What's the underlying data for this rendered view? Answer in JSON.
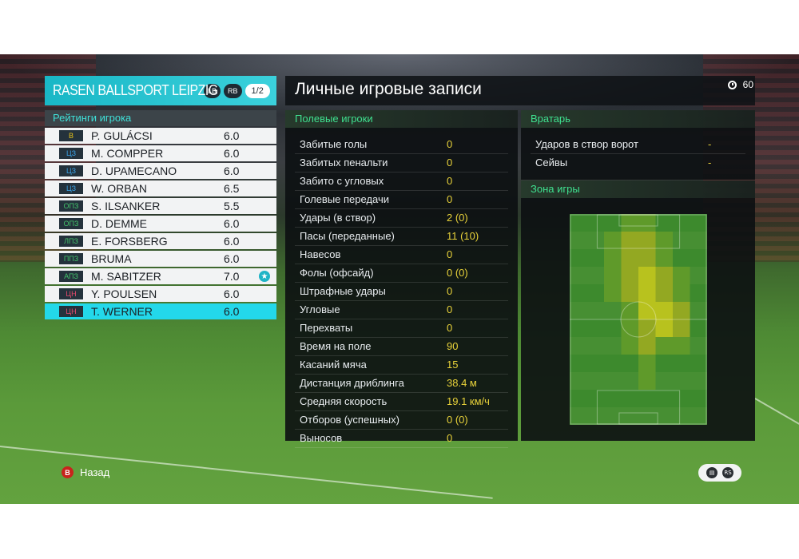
{
  "team": {
    "name": "RASEN BALLSPORT LEIPZIG",
    "lb_label": "LB",
    "rb_label": "RB",
    "page": "1/2"
  },
  "ratings_title": "Рейтинги игрока",
  "players": [
    {
      "pos": "В",
      "pos_group": "gk",
      "name": "P. GULÁCSI",
      "rating": "6.0",
      "star": false
    },
    {
      "pos": "ЦЗ",
      "pos_group": "df",
      "name": "M. COMPPER",
      "rating": "6.0",
      "star": false
    },
    {
      "pos": "ЦЗ",
      "pos_group": "df",
      "name": "D. UPAMECANO",
      "rating": "6.0",
      "star": false
    },
    {
      "pos": "ЦЗ",
      "pos_group": "df",
      "name": "W. ORBAN",
      "rating": "6.5",
      "star": false
    },
    {
      "pos": "ОПЗ",
      "pos_group": "mf",
      "name": "S. ILSANKER",
      "rating": "5.5",
      "star": false
    },
    {
      "pos": "ОПЗ",
      "pos_group": "mf",
      "name": "D. DEMME",
      "rating": "6.0",
      "star": false
    },
    {
      "pos": "ЛПЗ",
      "pos_group": "mf",
      "name": "E. FORSBERG",
      "rating": "6.0",
      "star": false
    },
    {
      "pos": "ППЗ",
      "pos_group": "mf",
      "name": "BRUMA",
      "rating": "6.0",
      "star": false
    },
    {
      "pos": "АПЗ",
      "pos_group": "mf",
      "name": "M. SABITZER",
      "rating": "7.0",
      "star": true
    },
    {
      "pos": "ЦН",
      "pos_group": "fw",
      "name": "Y. POULSEN",
      "rating": "6.0",
      "star": false
    },
    {
      "pos": "ЦН",
      "pos_group": "fw",
      "name": "T. WERNER",
      "rating": "6.0",
      "star": false,
      "selected": true
    }
  ],
  "main_title": "Личные игровые записи",
  "timer": "60",
  "field_players": {
    "title": "Полевые игроки",
    "stats": [
      {
        "label": "Забитые голы",
        "value": "0"
      },
      {
        "label": "Забитых пенальти",
        "value": "0"
      },
      {
        "label": "Забито с угловых",
        "value": "0"
      },
      {
        "label": "Голевые передачи",
        "value": "0"
      },
      {
        "label": "Удары (в створ)",
        "value": "2 (0)"
      },
      {
        "label": "Пасы (переданные)",
        "value": "11 (10)"
      },
      {
        "label": "Навесов",
        "value": "0"
      },
      {
        "label": "Фолы (офсайд)",
        "value": "0 (0)"
      },
      {
        "label": "Штрафные удары",
        "value": "0"
      },
      {
        "label": "Угловые",
        "value": "0"
      },
      {
        "label": "Перехваты",
        "value": "0"
      },
      {
        "label": "Время на поле",
        "value": "90"
      },
      {
        "label": "Касаний мяча",
        "value": "15"
      },
      {
        "label": "Дистанция дриблинга",
        "value": "38.4 м"
      },
      {
        "label": "Средняя скорость",
        "value": "19.1 км/ч"
      },
      {
        "label": "Отборов (успешных)",
        "value": "0 (0)"
      },
      {
        "label": "Выносов",
        "value": "0"
      }
    ]
  },
  "goalkeeper": {
    "title": "Вратарь",
    "stats": [
      {
        "label": "Ударов в створ ворот",
        "value": "-"
      },
      {
        "label": "Сейвы",
        "value": "-"
      }
    ]
  },
  "zone": {
    "title": "Зона игры"
  },
  "footer": {
    "back_key": "B",
    "back_label": "Назад",
    "rs_label": "RS"
  },
  "colors": {
    "accent": "#23d8ea",
    "section_green": "#3fe08f",
    "value_yellow": "#e8d23a"
  }
}
